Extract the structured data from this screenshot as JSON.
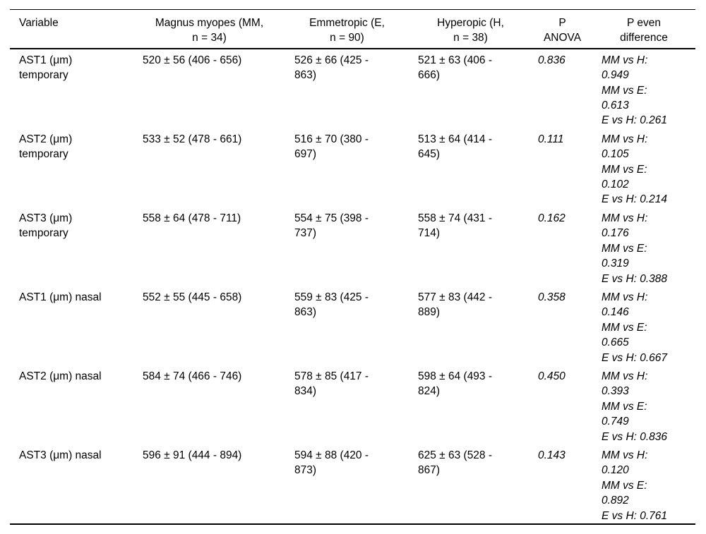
{
  "table": {
    "columns": [
      "Variable",
      "Magnus myopes (MM,\nn = 34)",
      "Emmetropic (E,\nn = 90)",
      "Hyperopic (H,\nn = 38)",
      "P\nANOVA",
      "P even\ndifference"
    ],
    "rows": [
      {
        "variable": "AST1 (μm)\ntemporary",
        "mm": "520 ± 56 (406 - 656)",
        "e": "526 ± 66 (425 -\n863)",
        "h": "521 ± 63 (406 -\n666)",
        "p_anova": "0.836",
        "pairwise": "MM vs H:\n0.949\nMM vs E:\n0.613\nE vs H: 0.261"
      },
      {
        "variable": "AST2 (μm)\ntemporary",
        "mm": "533 ± 52 (478 - 661)",
        "e": "516 ± 70 (380 -\n697)",
        "h": "513 ± 64 (414 -\n645)",
        "p_anova": "0.111",
        "pairwise": "MM vs H:\n0.105\nMM vs E:\n0.102\nE vs H: 0.214"
      },
      {
        "variable": "AST3 (μm)\ntemporary",
        "mm": "558 ± 64 (478 - 711)",
        "e": "554 ± 75 (398 -\n737)",
        "h": "558 ± 74 (431 -\n714)",
        "p_anova": "0.162",
        "pairwise": "MM vs H:\n0.176\nMM vs E:\n0.319\nE vs H: 0.388"
      },
      {
        "variable": "AST1 (μm) nasal",
        "mm": "552 ± 55 (445 - 658)",
        "e": "559 ± 83 (425 -\n863)",
        "h": "577 ± 83 (442 -\n889)",
        "p_anova": "0.358",
        "pairwise": "MM vs H:\n0.146\nMM vs E:\n0.665\nE vs H: 0.667"
      },
      {
        "variable": "AST2 (μm) nasal",
        "mm": "584 ± 74 (466 - 746)",
        "e": "578 ± 85 (417 -\n834)",
        "h": "598 ± 64 (493 -\n824)",
        "p_anova": "0.450",
        "pairwise": "MM vs H:\n0.393\nMM vs E:\n0.749\nE vs H: 0.836"
      },
      {
        "variable": "AST3 (μm) nasal",
        "mm": "596 ± 91 (444 - 894)",
        "e": "594 ± 88 (420 -\n873)",
        "h": "625 ± 63 (528 -\n867)",
        "p_anova": "0.143",
        "pairwise": "MM vs H:\n0.120\nMM vs E:\n0.892\nE vs H: 0.761"
      }
    ]
  }
}
